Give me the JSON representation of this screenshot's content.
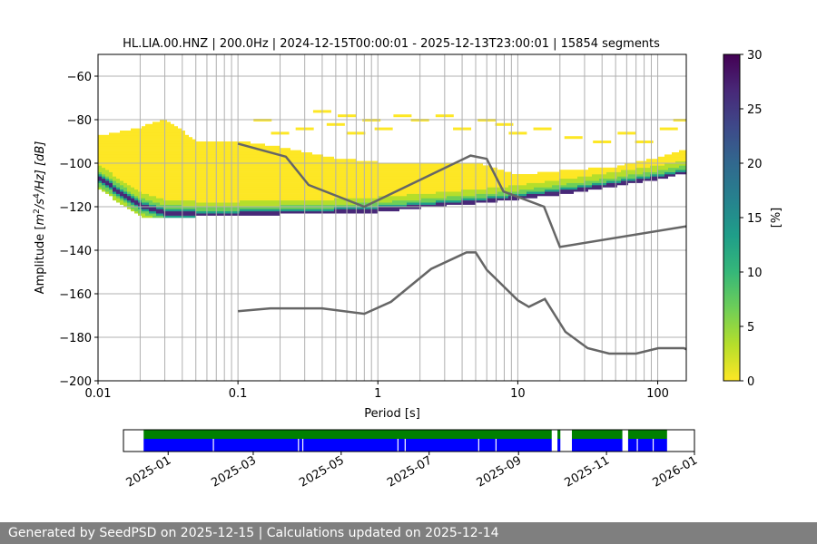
{
  "chart_data": [
    {
      "type": "heatmap",
      "title": "HL.LIA.00.HNZ | 200.0Hz | 2024-12-15T00:00:01 - 2025-12-13T23:00:01 | 15854 segments",
      "xlabel": "Period [s]",
      "ylabel_parts": [
        "Amplitude [",
        "m",
        "2",
        "/s",
        "4",
        "/Hz] [dB]"
      ],
      "x_scale": "log",
      "xlim": [
        0.01,
        160
      ],
      "ylim": [
        -200,
        -50
      ],
      "x_ticks": [
        0.01,
        0.1,
        1,
        10,
        100
      ],
      "x_tick_labels": [
        "0.01",
        "0.1",
        "1",
        "10",
        "100"
      ],
      "y_ticks": [
        -200,
        -180,
        -160,
        -140,
        -120,
        -100,
        -80,
        -60
      ],
      "y_tick_labels": [
        "−200",
        "−180",
        "−160",
        "−140",
        "−120",
        "−100",
        "−80",
        "−60"
      ],
      "grid": true,
      "colorbar": {
        "label": "[%]",
        "range": [
          0,
          30
        ],
        "ticks": [
          0,
          5,
          10,
          15,
          20,
          25,
          30
        ],
        "tick_labels": [
          "0",
          "5",
          "10",
          "15",
          "20",
          "25",
          "30"
        ],
        "colormap": [
          "#fde725",
          "#b5de2b",
          "#6ece58",
          "#35b779",
          "#1f9e89",
          "#26828e",
          "#31688e",
          "#3e4989",
          "#482878",
          "#440154"
        ]
      },
      "mode_curve": [
        [
          0.01,
          -107
        ],
        [
          0.02,
          -120
        ],
        [
          0.03,
          -123
        ],
        [
          0.05,
          -124
        ],
        [
          0.1,
          -124
        ],
        [
          0.2,
          -123.5
        ],
        [
          0.5,
          -123
        ],
        [
          1,
          -122
        ],
        [
          2,
          -120.5
        ],
        [
          5,
          -118.5
        ],
        [
          10,
          -116.5
        ],
        [
          20,
          -114
        ],
        [
          50,
          -110.5
        ],
        [
          100,
          -107.5
        ],
        [
          160,
          -105
        ]
      ],
      "distribution_band": [
        [
          0.01,
          -88,
          -112
        ],
        [
          0.02,
          -84,
          -125
        ],
        [
          0.03,
          -80,
          -125
        ],
        [
          0.05,
          -90,
          -125
        ],
        [
          0.1,
          -90,
          -124
        ],
        [
          0.2,
          -93,
          -124
        ],
        [
          0.5,
          -98,
          -123
        ],
        [
          1,
          -100,
          -123
        ],
        [
          2,
          -100,
          -121
        ],
        [
          5,
          -100,
          -119
        ],
        [
          10,
          -106,
          -117
        ],
        [
          20,
          -104,
          -115
        ],
        [
          50,
          -102,
          -111
        ],
        [
          100,
          -98,
          -108
        ],
        [
          160,
          -94,
          -105
        ]
      ],
      "sparse_points": [
        [
          0.15,
          -80
        ],
        [
          0.2,
          -86
        ],
        [
          0.3,
          -84
        ],
        [
          0.4,
          -76
        ],
        [
          0.5,
          -82
        ],
        [
          0.6,
          -78
        ],
        [
          0.7,
          -86
        ],
        [
          0.9,
          -80
        ],
        [
          1.1,
          -84
        ],
        [
          1.5,
          -78
        ],
        [
          2,
          -80
        ],
        [
          3,
          -78
        ],
        [
          4,
          -84
        ],
        [
          6,
          -80
        ],
        [
          8,
          -82
        ],
        [
          10,
          -86
        ],
        [
          15,
          -84
        ],
        [
          25,
          -88
        ],
        [
          40,
          -90
        ],
        [
          60,
          -86
        ],
        [
          80,
          -90
        ],
        [
          120,
          -84
        ],
        [
          150,
          -80
        ]
      ],
      "nhnm": [
        [
          0.1,
          -91
        ],
        [
          0.22,
          -97
        ],
        [
          0.32,
          -110
        ],
        [
          0.8,
          -120
        ],
        [
          4.6,
          -96.5
        ],
        [
          6,
          -98
        ],
        [
          7.9,
          -113
        ],
        [
          15.4,
          -120
        ],
        [
          20,
          -138.5
        ],
        [
          160,
          -129
        ]
      ],
      "nlnm": [
        [
          0.1,
          -168
        ],
        [
          0.17,
          -166.7
        ],
        [
          0.4,
          -166.7
        ],
        [
          0.8,
          -169.2
        ],
        [
          1.24,
          -163.7
        ],
        [
          2.4,
          -148.6
        ],
        [
          4.3,
          -141
        ],
        [
          5,
          -141
        ],
        [
          6,
          -149
        ],
        [
          10,
          -163
        ],
        [
          12,
          -166
        ],
        [
          15.6,
          -162.4
        ],
        [
          21.9,
          -177.5
        ],
        [
          31.6,
          -185
        ],
        [
          45,
          -187.5
        ],
        [
          70,
          -187.5
        ],
        [
          101,
          -185
        ],
        [
          154,
          -185
        ],
        [
          160,
          -185.5
        ]
      ],
      "curve_color": "#666666"
    },
    {
      "type": "timeline",
      "x_tick_labels": [
        "2025-01",
        "2025-03",
        "2025-05",
        "2025-07",
        "2025-09",
        "2025-11",
        "2026-01"
      ],
      "x_ticks": [
        "2025-01-01",
        "2025-03-01",
        "2025-05-01",
        "2025-07-01",
        "2025-09-01",
        "2025-11-01",
        "2026-01-01"
      ],
      "xlim": [
        "2024-12-01",
        "2026-01-01"
      ],
      "data_color": "#0000ff",
      "coverage_color": "#008000",
      "coverage": [
        [
          "2024-12-15",
          "2025-09-24"
        ],
        [
          "2025-09-28",
          "2025-09-30"
        ],
        [
          "2025-10-08",
          "2025-11-12"
        ],
        [
          "2025-11-16",
          "2025-12-13"
        ]
      ],
      "gaps": [
        "2025-02-01",
        "2025-04-01",
        "2025-04-04",
        "2025-06-09",
        "2025-06-14",
        "2025-08-04",
        "2025-08-16",
        "2025-11-22",
        "2025-12-03"
      ]
    }
  ],
  "footer": {
    "text": "Generated by SeedPSD on 2025-12-15 | Calculations updated on 2025-12-14"
  }
}
